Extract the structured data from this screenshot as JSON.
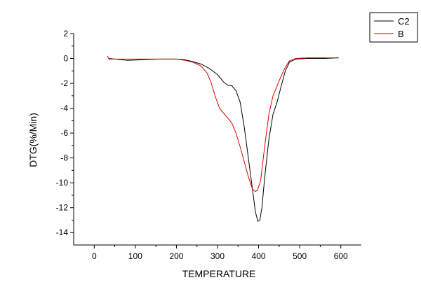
{
  "chart_data": {
    "type": "line",
    "title": "",
    "xlabel": "TEMPERATURE",
    "ylabel": "DTG(%/Min)",
    "xlim": [
      -50,
      650
    ],
    "ylim": [
      -15,
      2
    ],
    "x_ticks": [
      0,
      100,
      200,
      300,
      400,
      500,
      600
    ],
    "y_ticks": [
      2,
      0,
      -2,
      -4,
      -6,
      -8,
      -10,
      -12,
      -14
    ],
    "grid": false,
    "legend_position": "top-right",
    "series": [
      {
        "name": "C2",
        "color": "#000000",
        "points": [
          [
            35,
            0.0
          ],
          [
            50,
            -0.05
          ],
          [
            80,
            -0.15
          ],
          [
            120,
            -0.1
          ],
          [
            160,
            -0.05
          ],
          [
            200,
            -0.05
          ],
          [
            220,
            -0.1
          ],
          [
            240,
            -0.25
          ],
          [
            260,
            -0.45
          ],
          [
            280,
            -0.8
          ],
          [
            300,
            -1.3
          ],
          [
            315,
            -1.9
          ],
          [
            325,
            -2.15
          ],
          [
            335,
            -2.2
          ],
          [
            345,
            -2.6
          ],
          [
            355,
            -3.5
          ],
          [
            365,
            -5.5
          ],
          [
            375,
            -8.0
          ],
          [
            385,
            -10.5
          ],
          [
            392,
            -12.3
          ],
          [
            398,
            -13.1
          ],
          [
            403,
            -13.0
          ],
          [
            408,
            -12.0
          ],
          [
            415,
            -9.5
          ],
          [
            425,
            -6.5
          ],
          [
            435,
            -4.5
          ],
          [
            445,
            -3.5
          ],
          [
            455,
            -2.2
          ],
          [
            465,
            -1.0
          ],
          [
            475,
            -0.3
          ],
          [
            490,
            -0.05
          ],
          [
            520,
            0.0
          ],
          [
            560,
            0.0
          ],
          [
            595,
            0.05
          ]
        ]
      },
      {
        "name": "B",
        "color": "#e00000",
        "points": [
          [
            32,
            0.2
          ],
          [
            36,
            -0.05
          ],
          [
            60,
            -0.05
          ],
          [
            100,
            -0.05
          ],
          [
            150,
            -0.05
          ],
          [
            200,
            -0.05
          ],
          [
            220,
            -0.15
          ],
          [
            240,
            -0.3
          ],
          [
            260,
            -0.6
          ],
          [
            275,
            -1.2
          ],
          [
            285,
            -2.0
          ],
          [
            295,
            -3.1
          ],
          [
            305,
            -4.0
          ],
          [
            320,
            -4.6
          ],
          [
            335,
            -5.2
          ],
          [
            345,
            -6.0
          ],
          [
            355,
            -7.1
          ],
          [
            365,
            -8.3
          ],
          [
            375,
            -9.5
          ],
          [
            385,
            -10.5
          ],
          [
            392,
            -10.7
          ],
          [
            397,
            -10.6
          ],
          [
            405,
            -9.8
          ],
          [
            415,
            -7.0
          ],
          [
            425,
            -4.5
          ],
          [
            435,
            -3.0
          ],
          [
            445,
            -2.2
          ],
          [
            455,
            -1.4
          ],
          [
            465,
            -0.7
          ],
          [
            475,
            -0.2
          ],
          [
            490,
            0.0
          ],
          [
            520,
            0.05
          ],
          [
            560,
            0.05
          ],
          [
            595,
            0.05
          ]
        ]
      }
    ]
  }
}
